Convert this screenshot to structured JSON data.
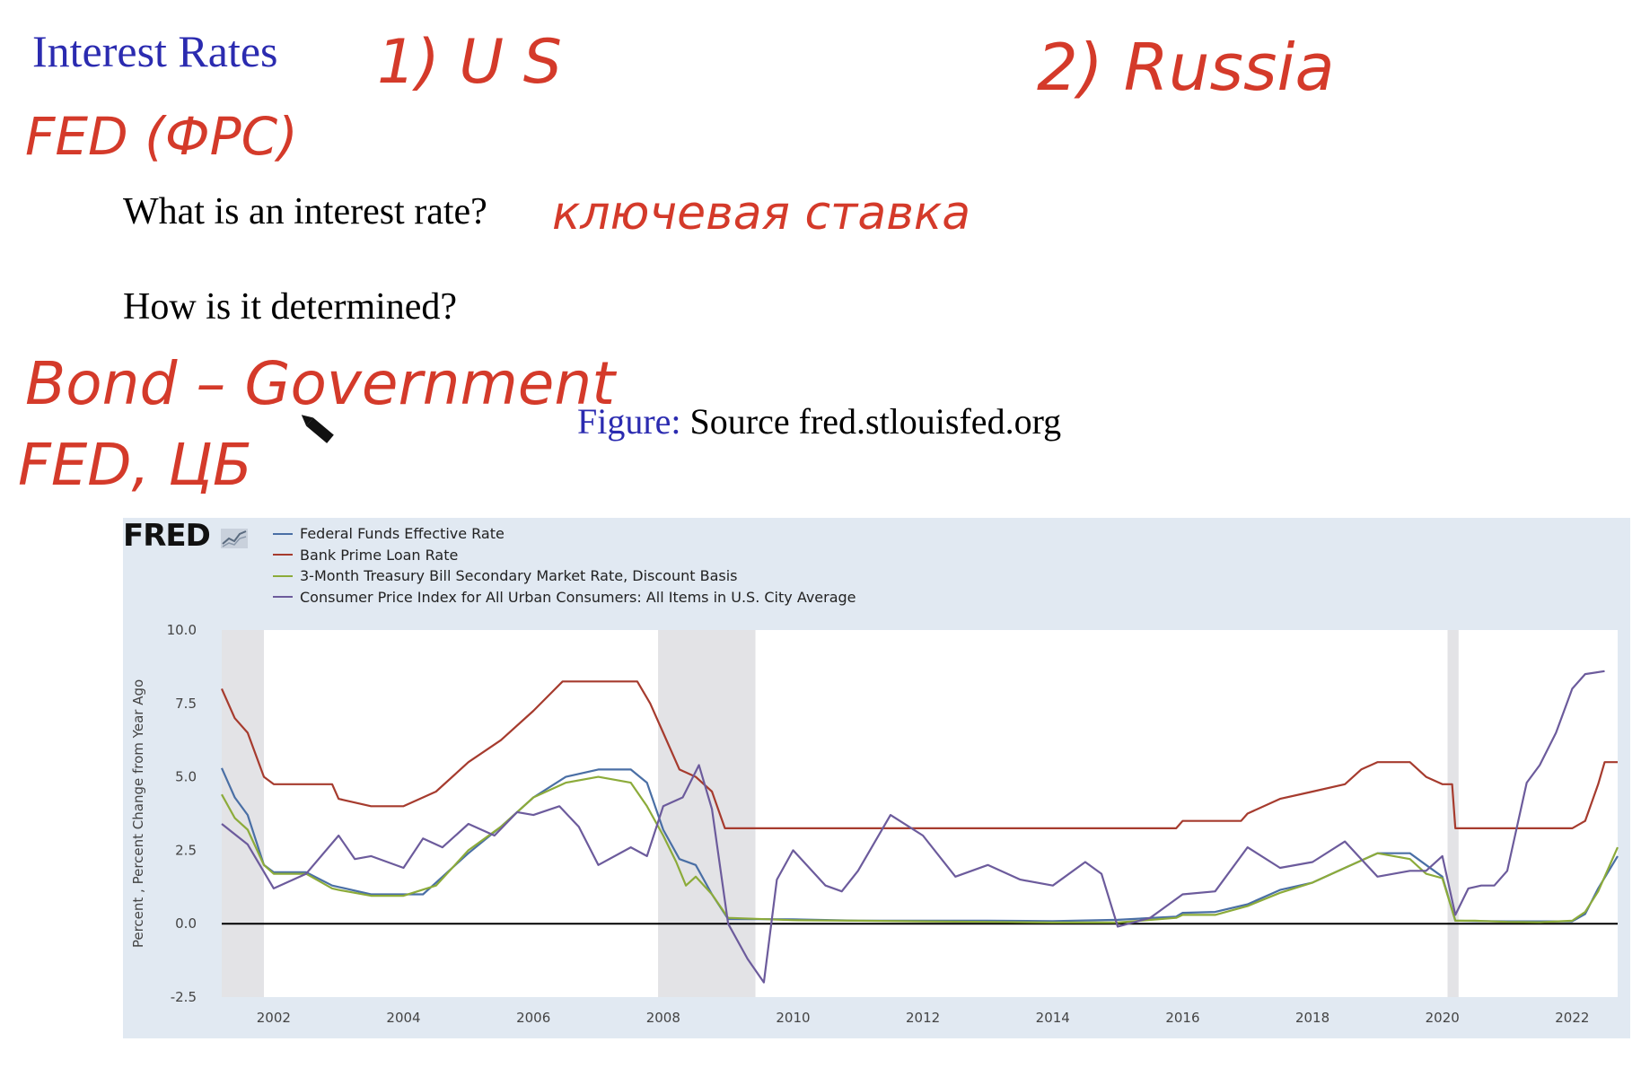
{
  "slide": {
    "title": "Interest Rates",
    "question1": "What is an interest rate?",
    "question2": "How is it determined?",
    "caption_label": "Figure:",
    "caption_text": " Source fred.stlouisfed.org"
  },
  "annotations": {
    "us": "1) U S",
    "russia": "2) Russia",
    "fed": "FED (ФРС)",
    "kluchevaya": "ключевая ставка",
    "bond": "Bond – Government",
    "fed_cb": "FED, ЦБ"
  },
  "colors": {
    "fed_funds": "#4a6fa5",
    "prime": "#a63b2e",
    "tbill": "#8cab3a",
    "cpi": "#6c5b9c",
    "recession": "#e3e3e6",
    "ink": "#d43a2a"
  },
  "chart_data": {
    "type": "line",
    "logo": "FRED",
    "ylabel": "Percent , Percent Change from Year Ago",
    "ylim": [
      -2.5,
      10
    ],
    "xlim": [
      2001.2,
      2022.7
    ],
    "yticks": [
      "10.0",
      "7.5",
      "5.0",
      "2.5",
      "0.0",
      "-2.5"
    ],
    "xticks": [
      "2002",
      "2004",
      "2006",
      "2008",
      "2010",
      "2012",
      "2014",
      "2016",
      "2018",
      "2020",
      "2022"
    ],
    "legend_position": "top-left",
    "grid": false,
    "recessions": [
      [
        2001.2,
        2001.85
      ],
      [
        2007.92,
        2009.42
      ],
      [
        2020.08,
        2020.25
      ]
    ],
    "series": [
      {
        "name": "Federal Funds Effective Rate",
        "x": [
          2001.2,
          2001.4,
          2001.6,
          2001.85,
          2002.0,
          2002.5,
          2002.9,
          2003.0,
          2003.5,
          2004.0,
          2004.3,
          2004.5,
          2005.0,
          2005.5,
          2006.0,
          2006.5,
          2007.0,
          2007.5,
          2007.75,
          2008.0,
          2008.25,
          2008.5,
          2008.75,
          2009.0,
          2010.0,
          2011.0,
          2012.0,
          2013.0,
          2014.0,
          2015.0,
          2015.9,
          2016.0,
          2016.5,
          2017.0,
          2017.5,
          2018.0,
          2018.5,
          2019.0,
          2019.5,
          2019.75,
          2020.0,
          2020.2,
          2020.5,
          2021.0,
          2021.5,
          2022.0,
          2022.2,
          2022.4,
          2022.7
        ],
        "values": [
          5.3,
          4.3,
          3.7,
          2.0,
          1.75,
          1.75,
          1.3,
          1.25,
          1.0,
          1.0,
          1.0,
          1.4,
          2.4,
          3.3,
          4.3,
          5.0,
          5.25,
          5.25,
          4.8,
          3.2,
          2.2,
          2.0,
          1.0,
          0.16,
          0.15,
          0.1,
          0.1,
          0.1,
          0.09,
          0.13,
          0.24,
          0.37,
          0.4,
          0.66,
          1.15,
          1.4,
          1.9,
          2.4,
          2.4,
          2.0,
          1.6,
          0.1,
          0.09,
          0.08,
          0.08,
          0.08,
          0.33,
          1.2,
          2.3
        ]
      },
      {
        "name": "Bank Prime Loan Rate",
        "x": [
          2001.2,
          2001.4,
          2001.6,
          2001.85,
          2002.0,
          2002.9,
          2003.0,
          2003.5,
          2004.0,
          2004.5,
          2005.0,
          2005.5,
          2006.0,
          2006.45,
          2007.0,
          2007.6,
          2007.8,
          2008.0,
          2008.25,
          2008.5,
          2008.75,
          2008.95,
          2009.0,
          2010.0,
          2011.0,
          2012.0,
          2013.0,
          2014.0,
          2015.0,
          2015.9,
          2016.0,
          2016.9,
          2017.0,
          2017.5,
          2018.0,
          2018.5,
          2018.75,
          2019.0,
          2019.5,
          2019.75,
          2020.0,
          2020.15,
          2020.2,
          2021.0,
          2022.0,
          2022.2,
          2022.4,
          2022.5,
          2022.7
        ],
        "values": [
          8.0,
          7.0,
          6.5,
          5.0,
          4.75,
          4.75,
          4.25,
          4.0,
          4.0,
          4.5,
          5.5,
          6.25,
          7.25,
          8.25,
          8.25,
          8.25,
          7.5,
          6.5,
          5.25,
          5.0,
          4.5,
          3.25,
          3.25,
          3.25,
          3.25,
          3.25,
          3.25,
          3.25,
          3.25,
          3.25,
          3.5,
          3.5,
          3.75,
          4.25,
          4.5,
          4.75,
          5.25,
          5.5,
          5.5,
          5.0,
          4.75,
          4.75,
          3.25,
          3.25,
          3.25,
          3.5,
          4.75,
          5.5,
          5.5
        ]
      },
      {
        "name": "3-Month Treasury Bill Secondary Market Rate, Discount Basis",
        "x": [
          2001.2,
          2001.4,
          2001.6,
          2001.85,
          2002.0,
          2002.5,
          2002.9,
          2003.0,
          2003.5,
          2004.0,
          2004.5,
          2005.0,
          2005.5,
          2006.0,
          2006.5,
          2007.0,
          2007.5,
          2007.75,
          2008.0,
          2008.2,
          2008.35,
          2008.5,
          2008.75,
          2009.0,
          2010.0,
          2011.0,
          2012.0,
          2013.0,
          2014.0,
          2015.0,
          2015.9,
          2016.0,
          2016.5,
          2017.0,
          2017.5,
          2018.0,
          2018.5,
          2019.0,
          2019.5,
          2019.75,
          2020.0,
          2020.2,
          2020.5,
          2021.0,
          2021.5,
          2022.0,
          2022.2,
          2022.4,
          2022.7
        ],
        "values": [
          4.4,
          3.6,
          3.2,
          2.0,
          1.7,
          1.7,
          1.2,
          1.15,
          0.95,
          0.95,
          1.3,
          2.5,
          3.3,
          4.3,
          4.8,
          5.0,
          4.8,
          4.0,
          3.0,
          2.1,
          1.3,
          1.6,
          1.0,
          0.2,
          0.12,
          0.1,
          0.08,
          0.06,
          0.04,
          0.04,
          0.2,
          0.3,
          0.3,
          0.6,
          1.05,
          1.4,
          1.9,
          2.4,
          2.2,
          1.7,
          1.55,
          0.1,
          0.1,
          0.06,
          0.05,
          0.1,
          0.4,
          1.1,
          2.6
        ]
      },
      {
        "name": "Consumer Price Index for All Urban Consumers: All Items in U.S. City Average",
        "x": [
          2001.2,
          2001.6,
          2002.0,
          2002.5,
          2003.0,
          2003.25,
          2003.5,
          2004.0,
          2004.3,
          2004.6,
          2005.0,
          2005.4,
          2005.75,
          2006.0,
          2006.4,
          2006.7,
          2007.0,
          2007.5,
          2007.75,
          2008.0,
          2008.3,
          2008.55,
          2008.75,
          2009.0,
          2009.3,
          2009.55,
          2009.75,
          2010.0,
          2010.5,
          2010.75,
          2011.0,
          2011.5,
          2012.0,
          2012.5,
          2013.0,
          2013.5,
          2014.0,
          2014.5,
          2014.75,
          2015.0,
          2015.5,
          2016.0,
          2016.5,
          2017.0,
          2017.5,
          2018.0,
          2018.5,
          2018.75,
          2019.0,
          2019.5,
          2019.75,
          2020.0,
          2020.2,
          2020.4,
          2020.6,
          2020.8,
          2021.0,
          2021.3,
          2021.5,
          2021.75,
          2022.0,
          2022.2,
          2022.5
        ],
        "values": [
          3.4,
          2.7,
          1.2,
          1.7,
          3.0,
          2.2,
          2.3,
          1.9,
          2.9,
          2.6,
          3.4,
          3.0,
          3.8,
          3.7,
          4.0,
          3.3,
          2.0,
          2.6,
          2.3,
          4.0,
          4.3,
          5.4,
          3.9,
          0.0,
          -1.2,
          -2.0,
          1.5,
          2.5,
          1.3,
          1.1,
          1.8,
          3.7,
          3.0,
          1.6,
          2.0,
          1.5,
          1.3,
          2.1,
          1.7,
          -0.1,
          0.2,
          1.0,
          1.1,
          2.6,
          1.9,
          2.1,
          2.8,
          2.2,
          1.6,
          1.8,
          1.8,
          2.3,
          0.3,
          1.2,
          1.3,
          1.3,
          1.8,
          4.8,
          5.4,
          6.5,
          8.0,
          8.5,
          8.6
        ]
      }
    ]
  }
}
